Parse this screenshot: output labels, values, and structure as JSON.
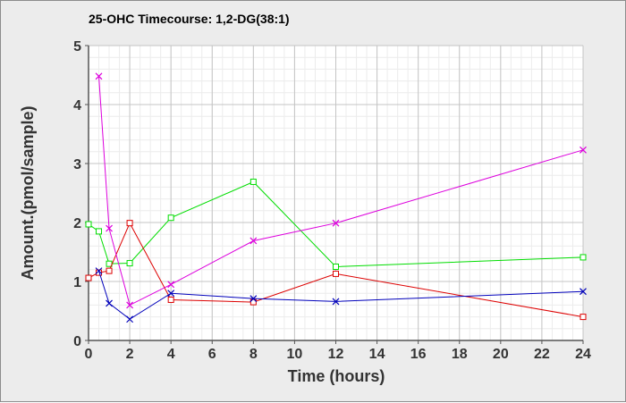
{
  "chart_data": {
    "type": "line",
    "title": "25-OHC Timecourse: 1,2-DG(38:1)",
    "xlabel": "Time (hours)",
    "ylabel": "Amount.(pmol/sample)",
    "xlim": [
      0,
      24
    ],
    "ylim": [
      0,
      5
    ],
    "x_ticks": [
      0,
      2,
      4,
      6,
      8,
      10,
      12,
      14,
      16,
      18,
      20,
      22,
      24
    ],
    "y_ticks": [
      0,
      1,
      2,
      3,
      4,
      5
    ],
    "grid": true,
    "legend": "none",
    "series": [
      {
        "color": "#00dd00",
        "marker": "square",
        "points": [
          [
            0,
            1.97
          ],
          [
            0.5,
            1.85
          ],
          [
            1,
            1.3
          ],
          [
            2,
            1.31
          ],
          [
            4,
            2.08
          ],
          [
            8,
            2.69
          ],
          [
            12,
            1.25
          ],
          [
            24,
            1.41
          ]
        ]
      },
      {
        "color": "#dd0000",
        "marker": "square",
        "points": [
          [
            0,
            1.06
          ],
          [
            0.5,
            1.15
          ],
          [
            1,
            1.18
          ],
          [
            2,
            1.99
          ],
          [
            4,
            0.69
          ],
          [
            8,
            0.65
          ],
          [
            12,
            1.13
          ],
          [
            24,
            0.4
          ]
        ]
      },
      {
        "color": "#0000bb",
        "marker": "x",
        "points": [
          [
            0.5,
            1.18
          ],
          [
            1,
            0.63
          ],
          [
            2,
            0.36
          ],
          [
            4,
            0.8
          ],
          [
            8,
            0.71
          ],
          [
            12,
            0.66
          ],
          [
            24,
            0.83
          ]
        ]
      },
      {
        "color": "#dd00dd",
        "marker": "x",
        "points": [
          [
            0.5,
            4.48
          ],
          [
            1,
            1.9
          ],
          [
            2,
            0.6
          ],
          [
            4,
            0.95
          ],
          [
            8,
            1.69
          ],
          [
            12,
            1.99
          ],
          [
            24,
            3.23
          ]
        ]
      }
    ]
  }
}
